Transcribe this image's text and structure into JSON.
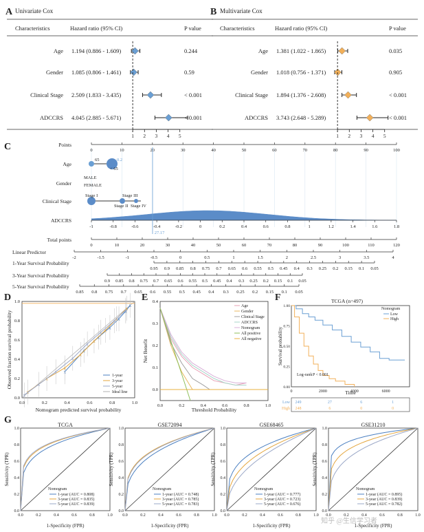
{
  "figure": {
    "panel_labels": [
      "A",
      "B",
      "C",
      "D",
      "E",
      "F",
      "G"
    ],
    "watermark": "知乎 @生信学习者"
  },
  "chart_data": [
    {
      "id": "A",
      "type": "table",
      "title": "Univariate Cox",
      "headers": [
        "Characteristics",
        "Hazard ratio (95% CI)",
        "P value"
      ],
      "rows": [
        {
          "name": "Age",
          "hr_text": "1.194 (0.886 - 1.609)",
          "p": "0.244",
          "hr": 1.194,
          "lo": 0.886,
          "hi": 1.609
        },
        {
          "name": "Gender",
          "hr_text": "1.085 (0.806 - 1.461)",
          "p": "0.59",
          "hr": 1.085,
          "lo": 0.806,
          "hi": 1.461
        },
        {
          "name": "Clinical Stage",
          "hr_text": "2.509 (1.833 - 3.435)",
          "p": "< 0.001",
          "hr": 2.509,
          "lo": 1.833,
          "hi": 3.435
        },
        {
          "name": "ADCCRS",
          "hr_text": "4.045 (2.885 - 5.671)",
          "p": "< 0.001",
          "hr": 4.045,
          "lo": 2.885,
          "hi": 5.671
        }
      ],
      "axis_ticks": [
        "1",
        "2",
        "3",
        "4",
        "5"
      ],
      "xlim": [
        0.7,
        5.6
      ],
      "color": "#6a9fd4"
    },
    {
      "id": "B",
      "type": "table",
      "title": "Multivariate Cox",
      "headers": [
        "Characteristics",
        "Hazard ratio (95% CI)",
        "P value"
      ],
      "rows": [
        {
          "name": "Age",
          "hr_text": "1.381 (1.022 - 1.865)",
          "p": "0.035",
          "hr": 1.381,
          "lo": 1.022,
          "hi": 1.865
        },
        {
          "name": "Gender",
          "hr_text": "1.018 (0.756 - 1.371)",
          "p": "0.905",
          "hr": 1.018,
          "lo": 0.756,
          "hi": 1.371
        },
        {
          "name": "Clinical Stage",
          "hr_text": "1.894 (1.376 - 2.608)",
          "p": "< 0.001",
          "hr": 1.894,
          "lo": 1.376,
          "hi": 2.608
        },
        {
          "name": "ADCCRS",
          "hr_text": "3.743 (2.648 - 5.289)",
          "p": "< 0.001",
          "hr": 3.743,
          "lo": 2.648,
          "hi": 5.289
        }
      ],
      "axis_ticks": [
        "1",
        "2",
        "3",
        "4",
        "5"
      ],
      "xlim": [
        0.7,
        5.6
      ],
      "color": "#f2b05a"
    },
    {
      "id": "C",
      "type": "nomogram",
      "rows": [
        {
          "label": "Points",
          "kind": "scale",
          "min": 0,
          "max": 100,
          "ticks": [
            "0",
            "10",
            "20",
            "30",
            "40",
            "50",
            "60",
            "70",
            "80",
            "90",
            "100"
          ]
        },
        {
          "label": "Age",
          "kind": "var",
          "levels": [
            "65",
            "< 65"
          ],
          "mark_text": "0.2"
        },
        {
          "label": "Gender",
          "kind": "var",
          "levels": [
            "MALE",
            "FEMALE"
          ]
        },
        {
          "label": "Clinical Stage",
          "kind": "var",
          "levels": [
            "Stage I",
            "Stage III",
            "Stage II",
            "Stage IV"
          ]
        },
        {
          "label": "ADCCRS",
          "kind": "density",
          "ticks": [
            "-1",
            "-0.8",
            "-0.6",
            "-0.4",
            "-0.2",
            "0",
            "0.2",
            "0.4",
            "0.6",
            "0.8",
            "1",
            "1.2",
            "1.4",
            "1.6",
            "1.8"
          ],
          "highlight": "-0.4"
        },
        {
          "label": "Total points",
          "kind": "scale",
          "ticks": [
            "0",
            "10",
            "20",
            "30",
            "40",
            "50",
            "60",
            "70",
            "80",
            "90",
            "100",
            "110",
            "120"
          ],
          "highlight": "27.17"
        },
        {
          "label": "Linear Predictor",
          "kind": "scale",
          "ticks": [
            "-2",
            "-1.5",
            "-1",
            "-0.5",
            "0",
            "0.5",
            "1",
            "1.5",
            "2",
            "2.5",
            "3",
            "3.5",
            "4"
          ]
        },
        {
          "label": "1-Year Survival Probability",
          "kind": "prob",
          "ticks": [
            "0.95",
            "0.9",
            "0.85",
            "0.8",
            "0.75",
            "0.7",
            "0.65",
            "0.6",
            "0.55",
            "0.5",
            "0.45",
            "0.4",
            "0.3",
            "0.25",
            "0.2",
            "0.15",
            "0.1",
            "0.05"
          ]
        },
        {
          "label": "3-Year Survival Probability",
          "kind": "prob",
          "ticks": [
            "0.9",
            "0.85",
            "0.8",
            "0.75",
            "0.7",
            "0.65",
            "0.6",
            "0.55",
            "0.5",
            "0.45",
            "0.4",
            "0.3",
            "0.25",
            "0.2",
            "0.15",
            "0.1",
            "0.05"
          ]
        },
        {
          "label": "5-Year Survival Probability",
          "kind": "prob",
          "ticks": [
            "0.85",
            "0.8",
            "0.75",
            "0.7",
            "0.65",
            "0.6",
            "0.55",
            "0.5",
            "0.45",
            "0.4",
            "0.3",
            "0.25",
            "0.2",
            "0.15",
            "0.1",
            "0.05"
          ]
        }
      ]
    },
    {
      "id": "D",
      "type": "line",
      "xlabel": "Nomogram predicted survival probability",
      "ylabel": "Observed fraction survival probability",
      "xlim": [
        0,
        1
      ],
      "ylim": [
        0,
        1
      ],
      "ticks": [
        "0.0",
        "0.2",
        "0.4",
        "0.6",
        "0.8",
        "1.0"
      ],
      "legend": [
        "1-year",
        "3-year",
        "5-year",
        "Ideal line"
      ],
      "series": [
        {
          "name": "1-year",
          "color": "#4a7fc1",
          "x": [
            0.38,
            0.55,
            0.68,
            0.78,
            0.86,
            0.92,
            0.96
          ],
          "y": [
            0.27,
            0.49,
            0.63,
            0.73,
            0.82,
            0.9,
            0.96
          ]
        },
        {
          "name": "3-year",
          "color": "#e4a53c",
          "x": [
            0.05,
            0.22,
            0.38,
            0.52,
            0.64,
            0.74,
            0.84,
            0.93
          ],
          "y": [
            0.06,
            0.2,
            0.31,
            0.45,
            0.59,
            0.7,
            0.82,
            0.93
          ]
        },
        {
          "name": "5-year",
          "color": "#9aa7c7",
          "x": [
            0.02,
            0.15,
            0.3,
            0.45,
            0.58,
            0.7,
            0.82,
            0.92
          ],
          "y": [
            0.03,
            0.14,
            0.27,
            0.41,
            0.56,
            0.68,
            0.8,
            0.91
          ]
        }
      ]
    },
    {
      "id": "E",
      "type": "line",
      "xlabel": "Threshold Probability",
      "ylabel": "Net Benefit",
      "xlim": [
        0,
        1
      ],
      "ylim": [
        -0.05,
        0.4
      ],
      "xticks": [
        "0.0",
        "0.2",
        "0.4",
        "0.6",
        "0.8",
        "1.0"
      ],
      "yticks": [
        "0.0",
        "0.1",
        "0.2",
        "0.3",
        "0.4"
      ],
      "legend": [
        "Age",
        "Gender",
        "Clinical Stage",
        "ADCCRS",
        "Nomogram",
        "All positive",
        "All negative"
      ],
      "series": [
        {
          "name": "Age",
          "color": "#e8a0b5",
          "x": [
            0.0,
            0.1,
            0.2,
            0.3,
            0.4,
            0.5,
            0.6,
            0.7,
            0.8
          ],
          "y": [
            0.37,
            0.23,
            0.15,
            0.1,
            0.07,
            0.04,
            0.03,
            0.02,
            0.03
          ]
        },
        {
          "name": "Gender",
          "color": "#e8b860",
          "x": [
            0.0,
            0.1,
            0.2,
            0.3
          ],
          "y": [
            0.37,
            0.2,
            0.08,
            0.0
          ]
        },
        {
          "name": "Clinical Stage",
          "color": "#a0a0a0",
          "x": [
            0.0,
            0.1,
            0.2,
            0.3,
            0.4,
            0.46
          ],
          "y": [
            0.37,
            0.21,
            0.12,
            0.05,
            0.02,
            0.0
          ]
        },
        {
          "name": "ADCCRS",
          "color": "#a8d4c8",
          "x": [
            0.0,
            0.1,
            0.2,
            0.3,
            0.4,
            0.5,
            0.6,
            0.7,
            0.8
          ],
          "y": [
            0.37,
            0.24,
            0.16,
            0.11,
            0.08,
            0.05,
            0.03,
            0.02,
            0.02
          ]
        },
        {
          "name": "Nomogram",
          "color": "#d8b0d8",
          "x": [
            0.0,
            0.1,
            0.2,
            0.3,
            0.4,
            0.5,
            0.6,
            0.7,
            0.8
          ],
          "y": [
            0.37,
            0.25,
            0.17,
            0.12,
            0.09,
            0.06,
            0.04,
            0.03,
            0.03
          ]
        },
        {
          "name": "All positive",
          "color": "#8fbf5a",
          "x": [
            0.0,
            0.28
          ],
          "y": [
            0.37,
            -0.05
          ]
        },
        {
          "name": "All negative",
          "color": "#e8b040",
          "x": [
            0.0,
            1.0
          ],
          "y": [
            0.0,
            0.0
          ]
        }
      ]
    },
    {
      "id": "F",
      "type": "line",
      "title": "TCGA (n=497)",
      "xlabel": "Time",
      "ylabel": "Survival probability",
      "xlim": [
        0,
        7500
      ],
      "ylim": [
        0,
        1
      ],
      "xticks": [
        "0",
        "2000",
        "4000",
        "6000"
      ],
      "yticks": [
        "0.00",
        "0.25",
        "0.50",
        "0.75",
        "1.00"
      ],
      "legend_title": "Nomogram",
      "legend": [
        "Low",
        "High"
      ],
      "annotation": "Log-rank",
      "pvalue": "P < 0.001",
      "series": [
        {
          "name": "Low",
          "color": "#6a9fd4",
          "x": [
            0,
            300,
            700,
            1100,
            1500,
            2000,
            2600,
            3200,
            3800,
            4400,
            5000,
            5600,
            6200,
            7200
          ],
          "y": [
            1.0,
            0.96,
            0.9,
            0.86,
            0.82,
            0.76,
            0.7,
            0.62,
            0.55,
            0.49,
            0.43,
            0.35,
            0.33,
            0.33
          ]
        },
        {
          "name": "High",
          "color": "#f2b05a",
          "x": [
            0,
            200,
            500,
            800,
            1100,
            1400,
            1700,
            2000,
            2400,
            2800,
            3400,
            4000
          ],
          "y": [
            1.0,
            0.86,
            0.66,
            0.5,
            0.38,
            0.28,
            0.2,
            0.14,
            0.1,
            0.07,
            0.03,
            0.0
          ]
        }
      ],
      "risk_table": {
        "labels": [
          "Low",
          "High"
        ],
        "times": [
          "0",
          "2000",
          "4000",
          "6000"
        ],
        "counts": [
          [
            "249",
            "27",
            "6",
            "1"
          ],
          [
            "248",
            "6",
            "0",
            "0"
          ]
        ]
      }
    },
    {
      "id": "G",
      "type": "line",
      "subplots": [
        {
          "title": "TCGA",
          "auc": [
            "1-year (AUC = 0.808)",
            "3-year (AUC = 0.835)",
            "5-year (AUC = 0.839)"
          ]
        },
        {
          "title": "GSE72094",
          "auc": [
            "1-year (AUC = 0.748)",
            "3-year (AUC = 0.785)",
            "5-year (AUC = 0.783)"
          ]
        },
        {
          "title": "GSE68465",
          "auc": [
            "1-year (AUC = 0.777)",
            "3-year (AUC = 0.723)",
            "5-year (AUC = 0.676)"
          ]
        },
        {
          "title": "GSE31210",
          "auc": [
            "1-year (AUC = 0.895)",
            "3-year (AUC = 0.839)",
            "5-year (AUC = 0.782)"
          ]
        }
      ],
      "xlabel": "1-Specificity (FPR)",
      "ylabel": "Sensitivity (TPR)",
      "ticks": [
        "0.0",
        "0.2",
        "0.4",
        "0.6",
        "0.8",
        "1.0"
      ],
      "legend_title": "Nomogram",
      "colors": [
        "#4a7fc1",
        "#e4a53c",
        "#9aa7c7"
      ]
    }
  ]
}
